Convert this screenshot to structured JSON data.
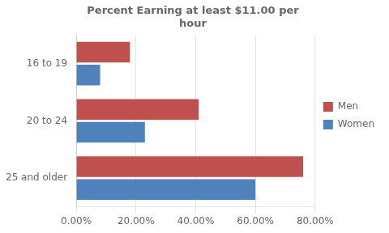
{
  "chart_data": {
    "type": "bar",
    "orientation": "horizontal",
    "title": "Percent Earning at least $11.00 per\nhour",
    "categories": [
      "16 to 19",
      "20 to 24",
      "25 and older"
    ],
    "series": [
      {
        "name": "Men",
        "color": "#C0504D",
        "values": [
          0.18,
          0.41,
          0.76
        ]
      },
      {
        "name": "Women",
        "color": "#4F81BD",
        "values": [
          0.08,
          0.23,
          0.6
        ]
      }
    ],
    "xlim": [
      0,
      0.8
    ],
    "xticks": [
      {
        "value": 0.0,
        "label": "0.00%"
      },
      {
        "value": 0.2,
        "label": "20.00%"
      },
      {
        "value": 0.4,
        "label": "40.00%"
      },
      {
        "value": 0.6,
        "label": "60.00%"
      },
      {
        "value": 0.8,
        "label": "80.00%"
      }
    ],
    "grid": true,
    "legend": "right"
  }
}
